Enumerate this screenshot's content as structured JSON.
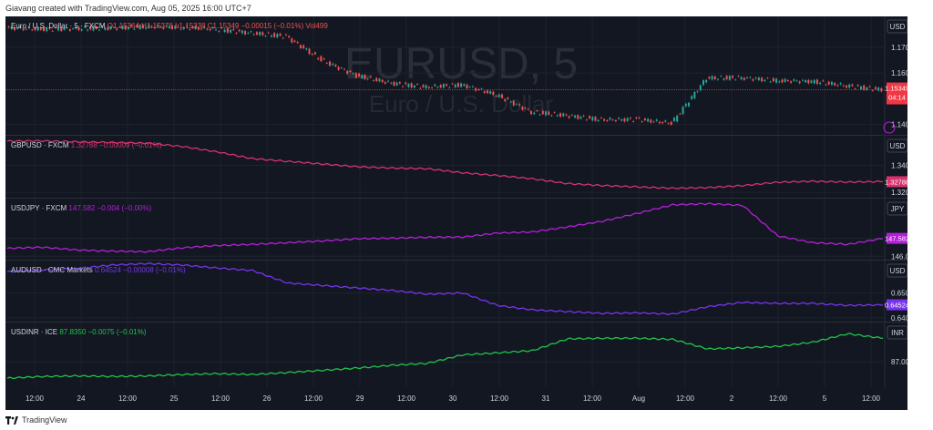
{
  "header_text": "Giavang created with TradingView.com, Aug 05, 2025 16:00 UTC+7",
  "footer_brand": "TradingView",
  "watermark": {
    "symbol": "EURUSD, 5",
    "name": "Euro / U.S. Dollar"
  },
  "colors": {
    "background": "#131722",
    "grid": "#1e222d",
    "eurusd_up": "#26a69a",
    "eurusd_down": "#ef5350",
    "gbpusd": "#d6336c",
    "usdjpy": "#b41fd8",
    "audusd": "#7733ee",
    "usdinr": "#1fc44a",
    "price_tag_red": "#f23645"
  },
  "chart_data": [
    {
      "type": "candlestick",
      "legend": {
        "name": "Euro / U.S. Dollar · 5 · FXCM",
        "o": "O1.15364",
        "h": "H1.15376",
        "l": "L1.15338",
        "c": "C1.15349",
        "chg": "−0.00015 (−0.01%)",
        "vol": "Vol499"
      },
      "currency": "USD",
      "y_ticks": [
        "1.17000",
        "1.16000",
        "1.14000"
      ],
      "ylim": [
        1.136,
        1.182
      ],
      "last_value": "1.15349",
      "countdown": "04:14",
      "x_dates": [
        "Jul 23 12:00",
        "Jul 24",
        "Jul 24 12:00",
        "Jul 25",
        "Jul 25 12:00",
        "Jul 26",
        "Jul 28 12:00",
        "Jul 29",
        "Jul 29 12:00",
        "Jul 30",
        "Jul 30 12:00",
        "Jul 31",
        "Jul 31 12:00",
        "Aug 1",
        "Aug 1 12:00",
        "Aug 2",
        "Aug 4 12:00",
        "Aug 5",
        "Aug 5 12:00"
      ],
      "closes": [
        1.1775,
        1.177,
        1.1772,
        1.1775,
        1.178,
        1.1778,
        1.177,
        1.1755,
        1.1742,
        1.165,
        1.159,
        1.156,
        1.1545,
        1.1555,
        1.1515,
        1.1448,
        1.1435,
        1.1418,
        1.142,
        1.1405,
        1.158,
        1.1582,
        1.157,
        1.1568,
        1.155,
        1.1535
      ]
    },
    {
      "type": "line",
      "legend": {
        "name": "GBPUSD · FXCM",
        "value": "1.32788",
        "chg": "−0.00009 (−0.01%)"
      },
      "currency": "USD",
      "y_ticks": [
        "1.34000",
        "1.32000"
      ],
      "ylim": [
        1.316,
        1.362
      ],
      "last_value": "1.32788",
      "values": [
        1.358,
        1.3582,
        1.3575,
        1.357,
        1.3565,
        1.354,
        1.35,
        1.345,
        1.343,
        1.341,
        1.339,
        1.338,
        1.3375,
        1.3345,
        1.3325,
        1.33,
        1.3265,
        1.325,
        1.324,
        1.323,
        1.3235,
        1.325,
        1.3275,
        1.3282,
        1.3276,
        1.328
      ]
    },
    {
      "type": "line",
      "legend": {
        "name": "USDJPY · FXCM",
        "value": "147.582",
        "chg": "−0.004 (−0.00%)"
      },
      "currency": "JPY",
      "y_ticks": [
        "147.582",
        "146.000"
      ],
      "ylim": [
        145.7,
        151.1
      ],
      "last_value": "147.582",
      "values": [
        146.7,
        146.8,
        146.55,
        146.45,
        146.4,
        146.75,
        146.95,
        147.05,
        147.2,
        147.35,
        147.55,
        147.6,
        147.68,
        147.7,
        148.05,
        148.15,
        148.6,
        149.1,
        149.8,
        150.55,
        150.65,
        150.5,
        147.8,
        147.2,
        147.05,
        147.58
      ]
    },
    {
      "type": "line",
      "legend": {
        "name": "AUDUSD · CMC Markets",
        "value": "0.64524",
        "chg": "−0.00008 (−0.01%)"
      },
      "currency": "USD",
      "y_ticks": [
        "0.65000",
        "0.64000"
      ],
      "ylim": [
        0.6385,
        0.663
      ],
      "last_value": "0.64524",
      "values": [
        0.6585,
        0.6592,
        0.6598,
        0.6612,
        0.6618,
        0.6612,
        0.66,
        0.659,
        0.654,
        0.653,
        0.652,
        0.651,
        0.6495,
        0.65,
        0.645,
        0.6432,
        0.6425,
        0.6418,
        0.642,
        0.6415,
        0.6445,
        0.6462,
        0.6458,
        0.6458,
        0.645,
        0.6452
      ]
    },
    {
      "type": "line",
      "legend": {
        "name": "USDINR · ICE",
        "value": "87.8350",
        "chg": "−0.0075 (−0.01%)"
      },
      "currency": "INR",
      "y_ticks": [
        "87.0000"
      ],
      "ylim": [
        86.1,
        88.4
      ],
      "values": [
        86.42,
        86.48,
        86.5,
        86.48,
        86.5,
        86.55,
        86.58,
        86.55,
        86.62,
        86.7,
        86.78,
        86.88,
        86.95,
        87.25,
        87.32,
        87.4,
        87.82,
        87.84,
        87.84,
        87.8,
        87.46,
        87.5,
        87.55,
        87.7,
        88.0,
        87.84
      ]
    }
  ],
  "x_axis_labels": [
    "12:00",
    "24",
    "12:00",
    "25",
    "12:00",
    "26",
    "12:00",
    "29",
    "12:00",
    "30",
    "12:00",
    "31",
    "12:00",
    "Aug",
    "12:00",
    "2",
    "12:00",
    "5",
    "12:00"
  ]
}
